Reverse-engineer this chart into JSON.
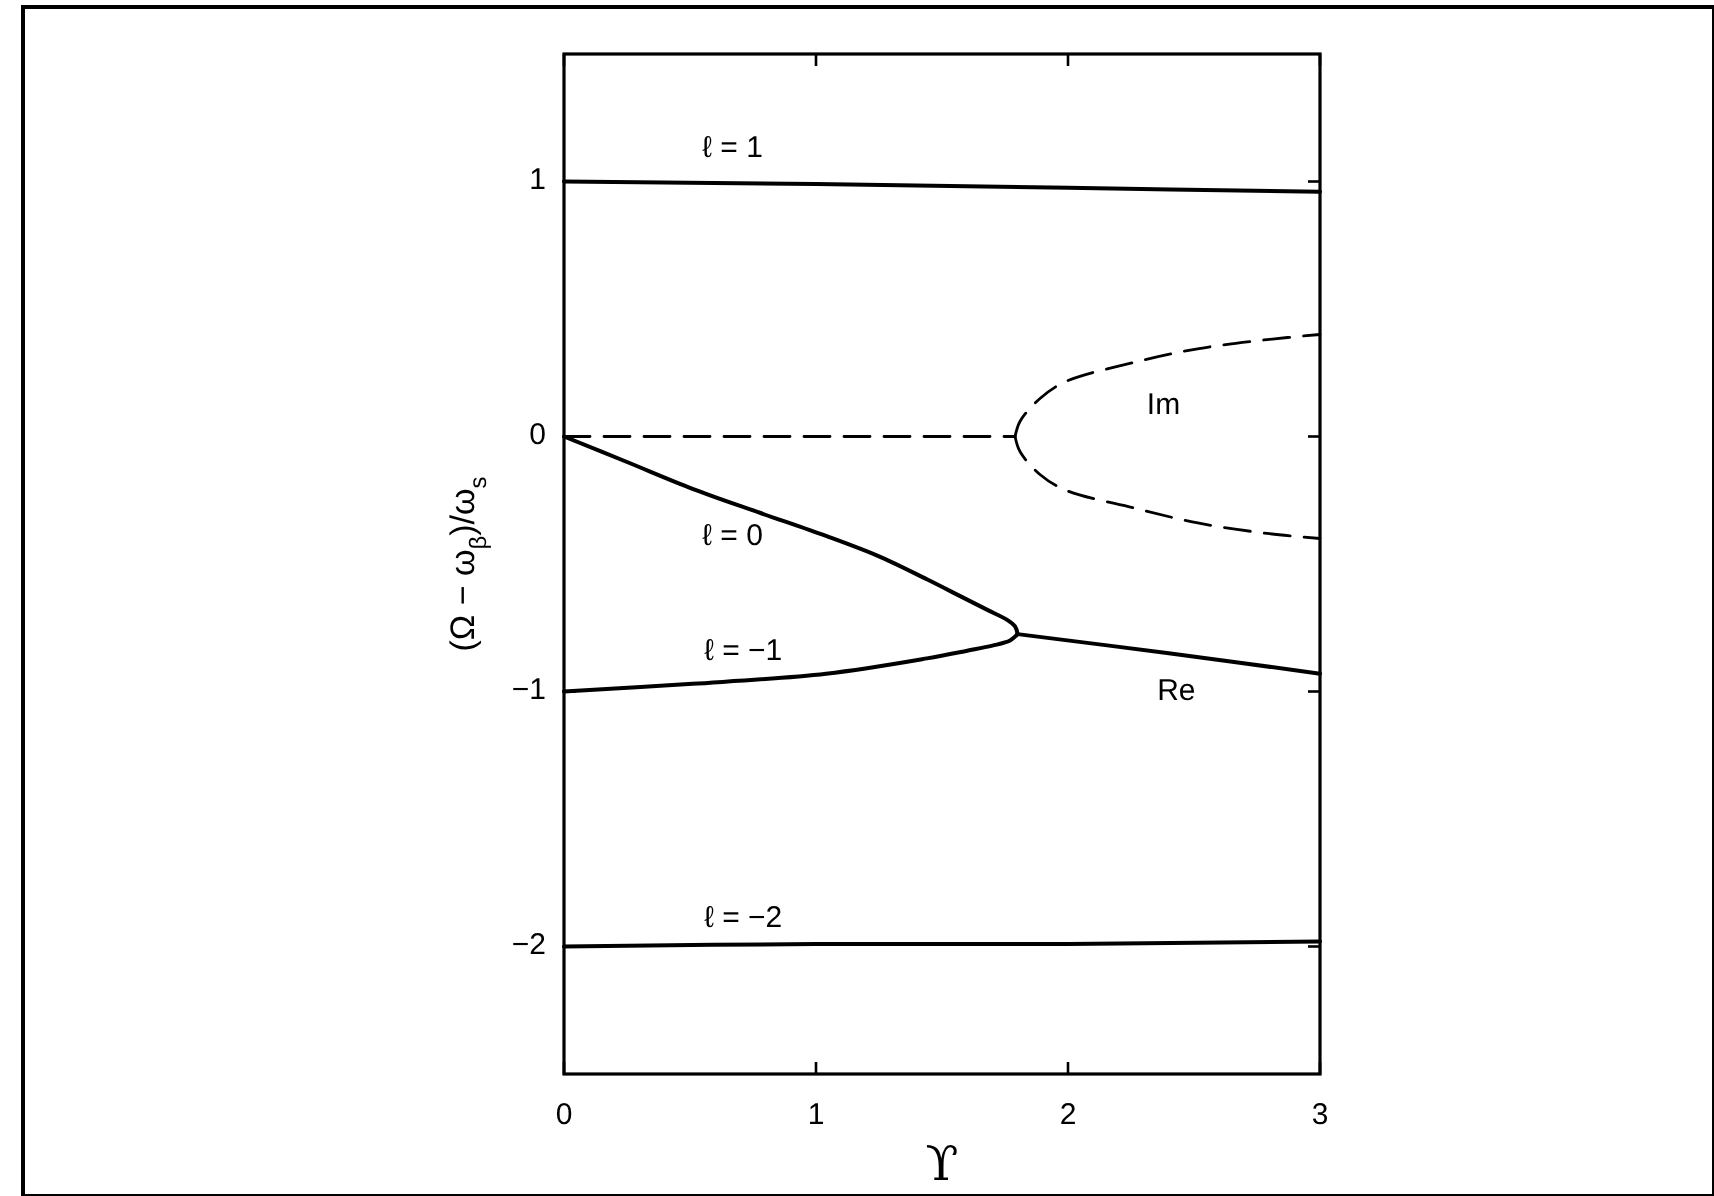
{
  "chart_data": {
    "type": "line",
    "xlabel": "ϒ",
    "ylabel": "(Ω − ω$_{β}$)/ω$_{s}$",
    "xlim": [
      0,
      3
    ],
    "ylim": [
      -2.5,
      1.5
    ],
    "xticks": [
      0,
      1,
      2,
      3
    ],
    "yticks": [
      -2,
      -1,
      0,
      1
    ],
    "series": [
      {
        "name": "ℓ = 1",
        "color": "#000000",
        "line_style": "solid",
        "x": [
          0,
          1,
          2,
          3
        ],
        "values": [
          1.0,
          0.99,
          0.975,
          0.96
        ]
      },
      {
        "name": "ℓ = 0",
        "color": "#000000",
        "line_style": "solid",
        "x": [
          0,
          0.25,
          0.51,
          0.78,
          1.04,
          1.25,
          1.44,
          1.58,
          1.68,
          1.76,
          1.79,
          1.8
        ],
        "values": [
          0,
          -0.1,
          -0.205,
          -0.3,
          -0.39,
          -0.47,
          -0.56,
          -0.63,
          -0.68,
          -0.72,
          -0.745,
          -0.775
        ]
      },
      {
        "name": "ℓ = −1",
        "color": "#000000",
        "line_style": "solid",
        "x": [
          0,
          0.51,
          1.04,
          1.44,
          1.6,
          1.7,
          1.77,
          1.8
        ],
        "values": [
          -1.0,
          -0.97,
          -0.93,
          -0.87,
          -0.84,
          -0.82,
          -0.8,
          -0.775
        ]
      },
      {
        "name": "ℓ = −2",
        "color": "#000000",
        "line_style": "solid",
        "x": [
          0,
          1,
          2,
          3
        ],
        "values": [
          -2.0,
          -1.99,
          -1.99,
          -1.98
        ]
      },
      {
        "name": "Re",
        "color": "#000000",
        "line_style": "solid",
        "x": [
          1.8,
          2.4,
          3
        ],
        "values": [
          -0.775,
          -0.85,
          -0.93
        ]
      },
      {
        "name": "Im",
        "color": "#000000",
        "line_style": "dashed",
        "x": [
          1.79,
          1.81,
          1.89,
          1.99,
          2.26,
          2.52,
          2.79,
          3
        ],
        "values": [
          0,
          0.06,
          0.15,
          0.215,
          0.29,
          0.345,
          0.38,
          0.4
        ]
      },
      {
        "color": "#000000",
        "line_style": "dashed",
        "x": [
          1.79,
          1.81,
          1.89,
          1.99,
          2.26,
          2.52,
          2.79,
          3
        ],
        "values": [
          0,
          -0.06,
          -0.15,
          -0.21,
          -0.28,
          -0.34,
          -0.38,
          -0.4
        ]
      },
      {
        "color": "#000000",
        "line_style": "dashed",
        "x": [
          0,
          1.79
        ],
        "values": [
          0,
          0
        ]
      }
    ]
  }
}
